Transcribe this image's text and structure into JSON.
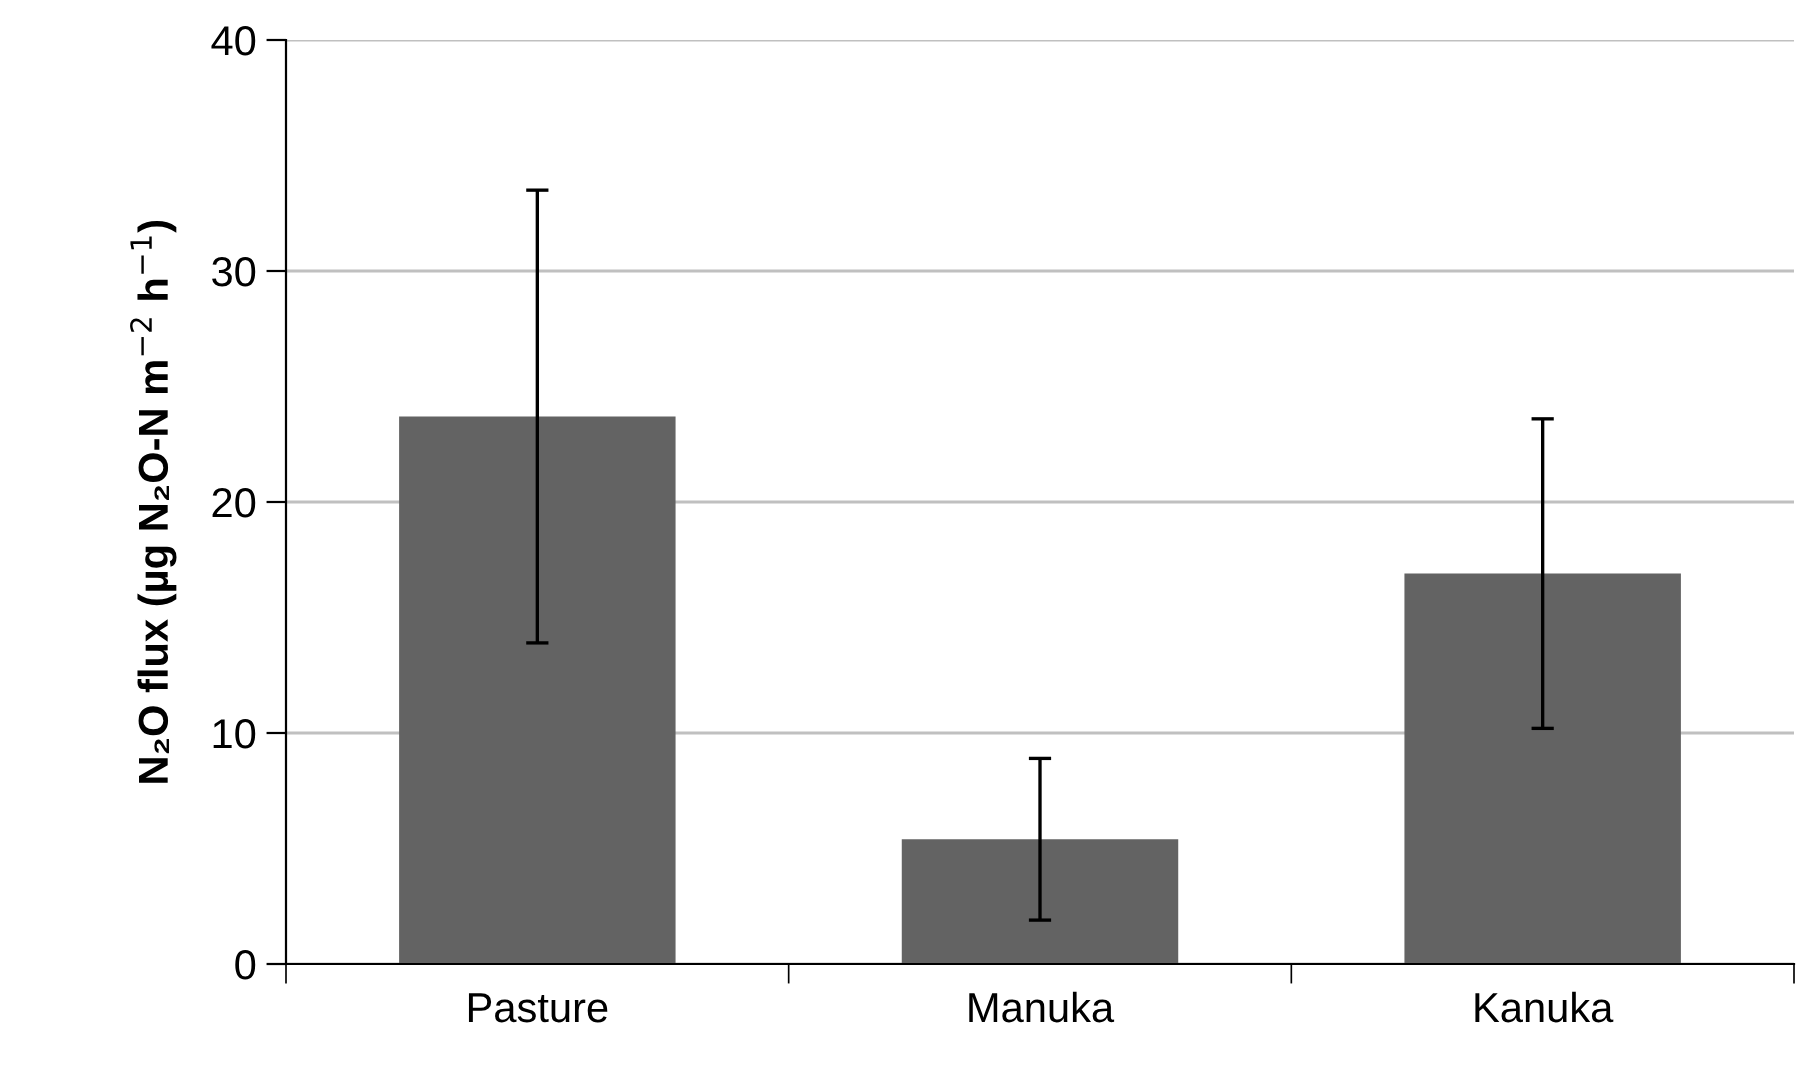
{
  "chart_data": {
    "type": "bar",
    "ylabel": "N₂O flux (µg N₂O-N m$^{−2}$ h$^{−1}$)",
    "categories": [
      "Pasture",
      "Manuka",
      "Kanuka"
    ],
    "values": [
      23.7,
      5.4,
      16.9
    ],
    "errors": [
      9.8,
      3.5,
      6.7
    ],
    "color": "#636363",
    "ylim": [
      0,
      40
    ],
    "yticks": [
      0,
      10,
      20,
      30,
      40
    ],
    "grid": "y",
    "legend": false
  }
}
